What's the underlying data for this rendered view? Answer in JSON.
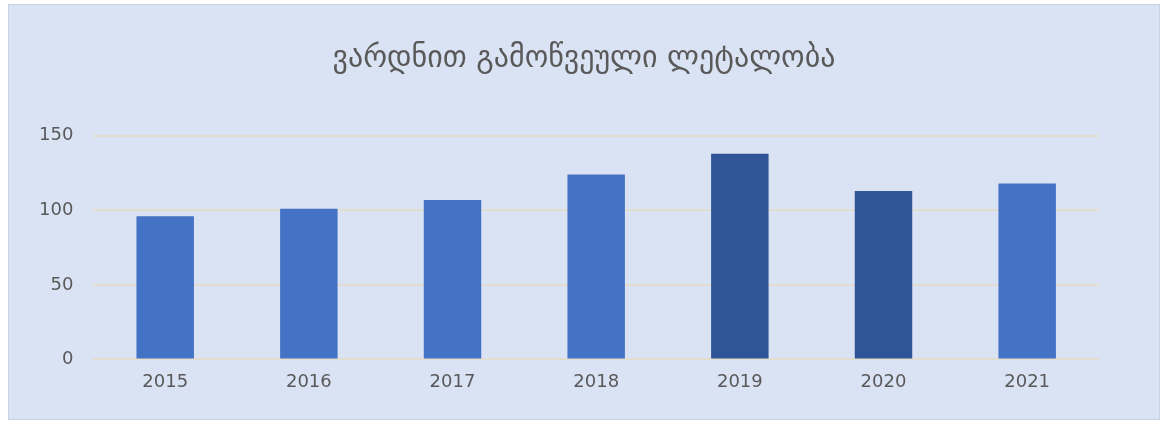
{
  "chart_data": {
    "type": "bar",
    "title": "ვარდნით გამოწვეული ლეტალობა",
    "categories": [
      "2015",
      "2016",
      "2017",
      "2018",
      "2019",
      "2020",
      "2021"
    ],
    "values": [
      96,
      101,
      107,
      124,
      138,
      113,
      118
    ],
    "colors": [
      "#4472c4",
      "#4472c4",
      "#4472c4",
      "#4472c4",
      "#2f5597",
      "#2f5597",
      "#4472c4"
    ],
    "ylim": [
      0,
      150
    ],
    "yticks": [
      0,
      50,
      100,
      150
    ],
    "grid": "y"
  }
}
